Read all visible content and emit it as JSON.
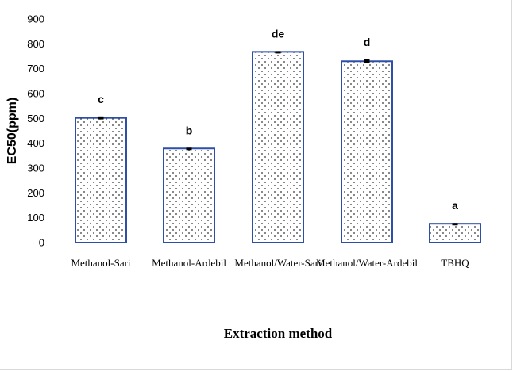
{
  "chart_data": {
    "type": "bar",
    "categories": [
      "Methanol-Sari",
      "Methanol-Ardebil",
      "Methanol/Water-Sari",
      "Methanol/Water-Ardebil",
      "TBHQ"
    ],
    "values": [
      502,
      379,
      768,
      730,
      76
    ],
    "errors": [
      6,
      3,
      3,
      8,
      3
    ],
    "significance_letters": [
      "c",
      "b",
      "de",
      "d",
      "a"
    ],
    "xlabel": "Extraction method",
    "ylabel": "EC50(ppm)",
    "ylim": [
      0,
      900
    ],
    "yticks": [
      0,
      100,
      200,
      300,
      400,
      500,
      600,
      700,
      800,
      900
    ],
    "grid": false,
    "legend": "none",
    "bar_fill": "dotted",
    "colors": {
      "bar_border": "#2e4fa8",
      "dots": "#333333",
      "error_bar": "#000000",
      "axis": "#000000"
    }
  }
}
